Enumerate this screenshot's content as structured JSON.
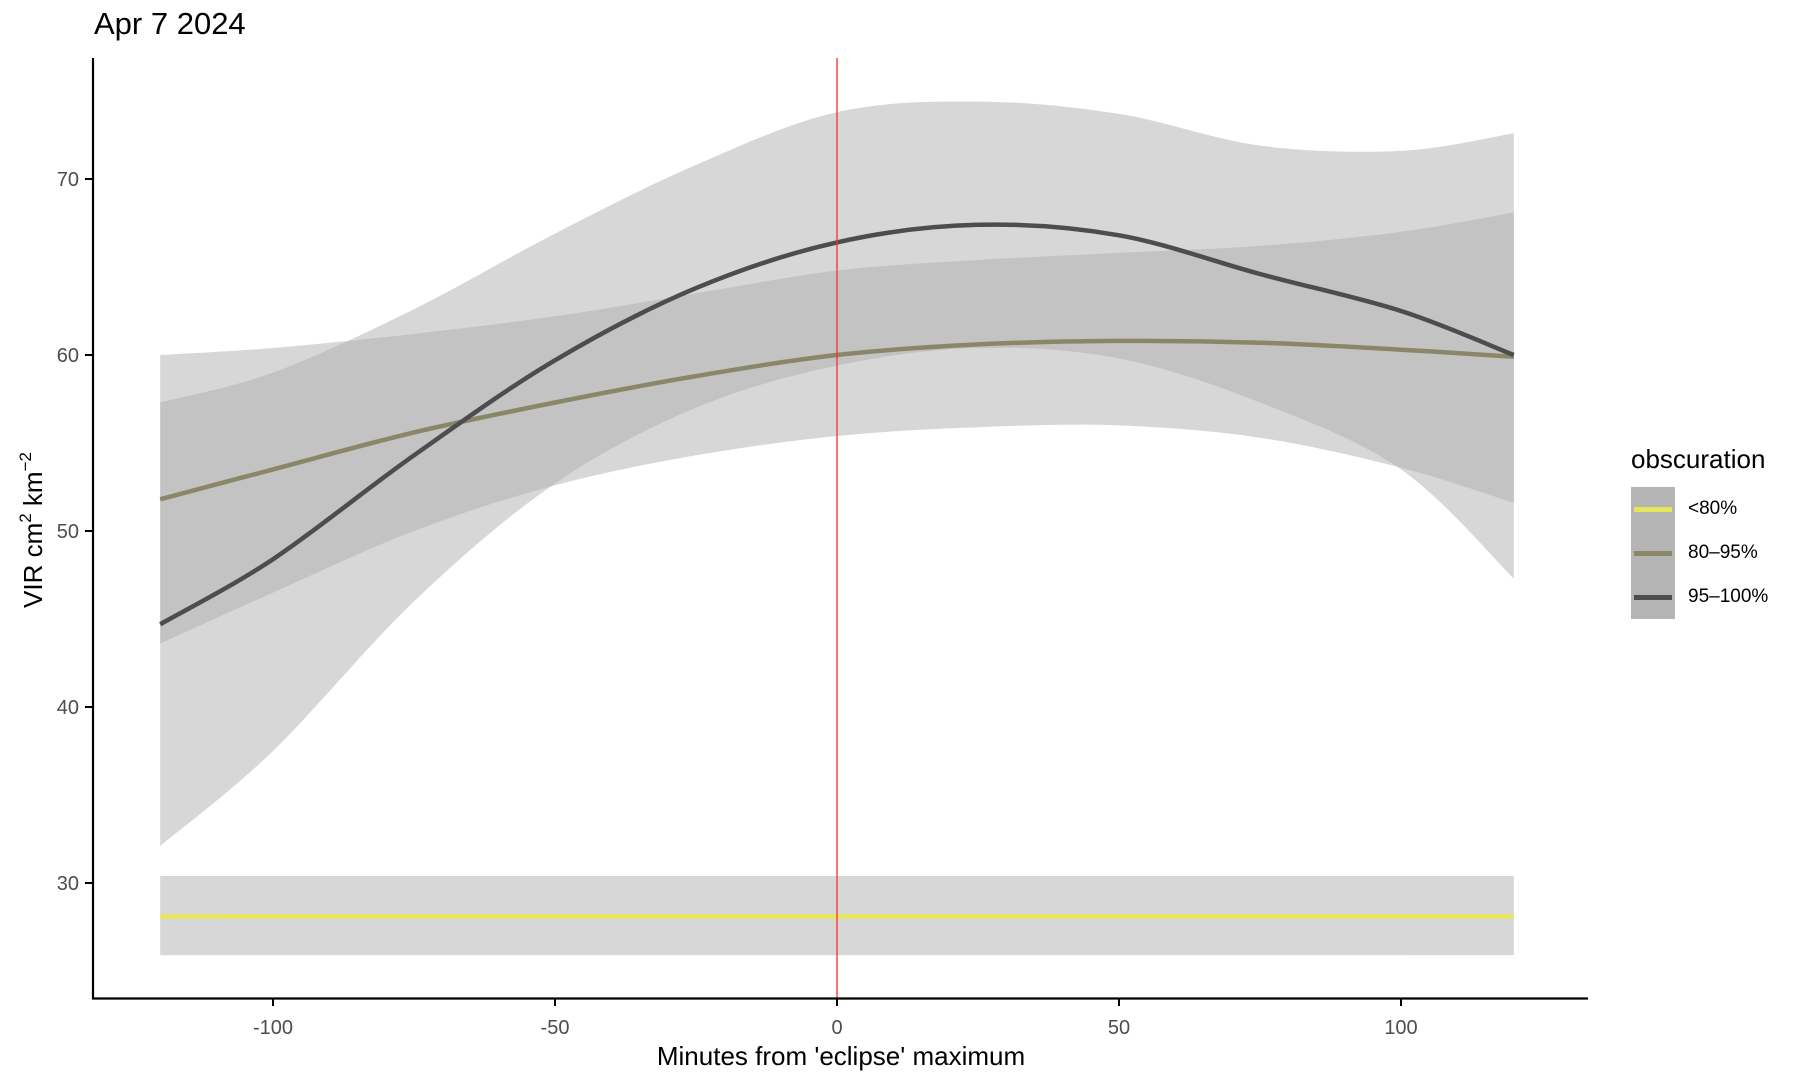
{
  "title": "Apr 7 2024",
  "axes": {
    "x_title": "Minutes from 'eclipse' maximum",
    "y_title_parts": [
      "VIR cm",
      "2",
      " km",
      "−2"
    ],
    "x_ticks": [
      -100,
      -50,
      0,
      50,
      100
    ],
    "x_tick_labels": [
      "-100",
      "-50",
      "0",
      "50",
      "100"
    ],
    "y_ticks": [
      30,
      40,
      50,
      60,
      70
    ],
    "y_tick_labels": [
      "30",
      "40",
      "50",
      "60",
      "70"
    ]
  },
  "legend": {
    "title": "obscuration",
    "items": [
      {
        "label": "<80%",
        "color": "#e6e65a"
      },
      {
        "label": "80–95%",
        "color": "#8a8768"
      },
      {
        "label": "95–100%",
        "color": "#4d4d4d"
      }
    ]
  },
  "colors": {
    "ribbon": "#b0b0b0",
    "ribbon_opacity": 0.5,
    "vline": "#ff2a2a",
    "axis": "#000000"
  },
  "chart_data": {
    "type": "line",
    "title": "Apr 7 2024",
    "xlabel": "Minutes from 'eclipse' maximum",
    "ylabel": "VIR cm^2 km^-2",
    "xlim": [
      -132,
      132
    ],
    "ylim": [
      23.5,
      76.5
    ],
    "grid": false,
    "legend_position": "right",
    "legend_title": "obscuration",
    "vline": {
      "x": 0,
      "color": "#ff2a2a"
    },
    "x": [
      -120,
      -100,
      -75,
      -50,
      -25,
      0,
      25,
      50,
      75,
      100,
      120
    ],
    "series": [
      {
        "name": "<80%",
        "color": "#e6e65a",
        "values": [
          28.1,
          28.1,
          28.1,
          28.1,
          28.1,
          28.1,
          28.1,
          28.1,
          28.1,
          28.1,
          28.1
        ],
        "lower": [
          25.9,
          25.9,
          25.9,
          25.9,
          25.9,
          25.9,
          25.9,
          25.9,
          25.9,
          25.9,
          25.9
        ],
        "upper": [
          30.4,
          30.4,
          30.4,
          30.4,
          30.4,
          30.4,
          30.4,
          30.4,
          30.4,
          30.4,
          30.4
        ]
      },
      {
        "name": "80–95%",
        "color": "#8a8768",
        "values": [
          51.8,
          53.5,
          55.6,
          57.3,
          58.8,
          60.0,
          60.6,
          60.8,
          60.7,
          60.3,
          59.9
        ],
        "lower": [
          43.6,
          46.5,
          50.0,
          52.6,
          54.3,
          55.4,
          55.9,
          56.0,
          55.3,
          53.6,
          51.6
        ],
        "upper": [
          60.0,
          60.4,
          61.2,
          62.2,
          63.5,
          64.8,
          65.4,
          65.8,
          66.2,
          67.0,
          68.1
        ]
      },
      {
        "name": "95–100%",
        "color": "#4d4d4d",
        "values": [
          44.7,
          48.4,
          54.3,
          59.7,
          63.8,
          66.4,
          67.4,
          66.8,
          64.6,
          62.5,
          60.0
        ],
        "lower": [
          32.1,
          37.5,
          46.0,
          52.7,
          57.0,
          59.4,
          60.4,
          59.8,
          57.3,
          53.5,
          47.3
        ],
        "upper": [
          57.3,
          59.0,
          62.6,
          66.9,
          70.8,
          73.8,
          74.4,
          73.7,
          71.9,
          71.6,
          72.6
        ]
      }
    ]
  }
}
